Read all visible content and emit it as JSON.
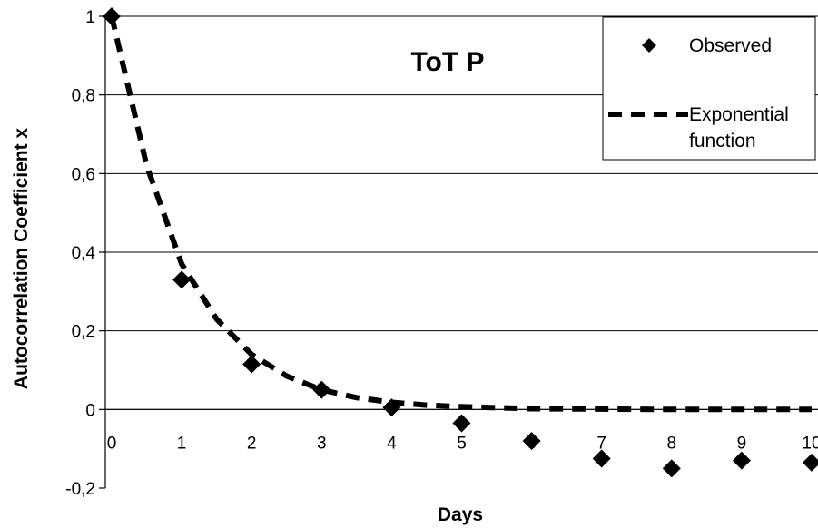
{
  "chart_data": {
    "type": "scatter",
    "title": "ToT P",
    "xlabel": "Days",
    "ylabel": "Autocorrelation Coefficient x",
    "xlim": [
      0,
      10
    ],
    "ylim": [
      -0.2,
      1
    ],
    "x_ticks": [
      "0",
      "1",
      "2",
      "3",
      "4",
      "5",
      "6",
      "7",
      "8",
      "9",
      "10"
    ],
    "y_ticks": [
      "-0,2",
      "0",
      "0,2",
      "0,4",
      "0,6",
      "0,8",
      "1"
    ],
    "y_tick_values": [
      -0.2,
      0,
      0.2,
      0.4,
      0.6,
      0.8,
      1
    ],
    "grid": "horizontal",
    "legend_position": "top-right",
    "series": [
      {
        "name": "Observed",
        "marker": "diamond",
        "color": "#000000",
        "x": [
          0,
          1,
          2,
          3,
          4,
          5,
          6,
          7,
          8,
          9,
          10
        ],
        "y": [
          1.0,
          0.33,
          0.115,
          0.05,
          0.005,
          -0.035,
          -0.08,
          -0.125,
          -0.15,
          -0.13,
          -0.135
        ]
      },
      {
        "name": "Exponential function",
        "line_style": "dashed",
        "color": "#000000",
        "x": [
          0,
          0.5,
          1,
          1.5,
          2,
          2.5,
          3,
          3.5,
          4,
          4.5,
          5,
          6,
          7,
          8,
          9,
          10
        ],
        "y": [
          1.0,
          0.62,
          0.37,
          0.23,
          0.14,
          0.085,
          0.05,
          0.03,
          0.018,
          0.011,
          0.007,
          0.002,
          0.001,
          0.0,
          0.0,
          0.0
        ]
      }
    ]
  },
  "legend": {
    "observed_label": "Observed",
    "exp_label_line1": "Exponential",
    "exp_label_line2": "function"
  }
}
